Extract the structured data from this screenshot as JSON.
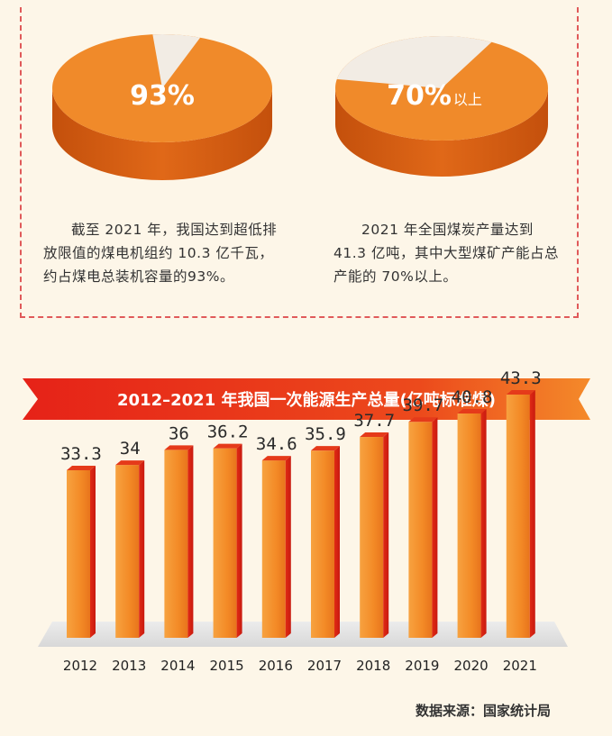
{
  "pies": [
    {
      "label": "93%",
      "suffix": "",
      "caption": "截至 2021 年，我国达到超低排放限值的煤电机组约 10.3 亿千瓦，约占煤电总装机容量的93%。"
    },
    {
      "label": "70%",
      "suffix": "以上",
      "caption": "2021 年全国煤炭产量达到 41.3 亿吨，其中大型煤矿产能占总产能的 70%以上。"
    }
  ],
  "banner": {
    "title": "2012–2021 年我国一次能源生产总量(亿吨标准煤)"
  },
  "source": "数据来源：国家统计局",
  "colors": {
    "orange": "#f08a2a",
    "orange_dark": "#d85a10",
    "red": "#e32119",
    "slice": "#f2ece4"
  },
  "chart_data": [
    {
      "type": "pie",
      "values": [
        93,
        7
      ]
    },
    {
      "type": "pie",
      "values": [
        70,
        30
      ]
    },
    {
      "type": "bar",
      "title": "2012–2021 年我国一次能源生产总量(亿吨标准煤)",
      "categories": [
        "2012",
        "2013",
        "2014",
        "2015",
        "2016",
        "2017",
        "2018",
        "2019",
        "2020",
        "2021"
      ],
      "values": [
        33.3,
        34,
        36,
        36.2,
        34.6,
        35.9,
        37.7,
        39.7,
        40.8,
        43.3
      ],
      "value_labels": [
        "33.3",
        "34",
        "36",
        "36.2",
        "34.6",
        "35.9",
        "37.7",
        "39.7",
        "40.8",
        "43.3"
      ]
    }
  ]
}
